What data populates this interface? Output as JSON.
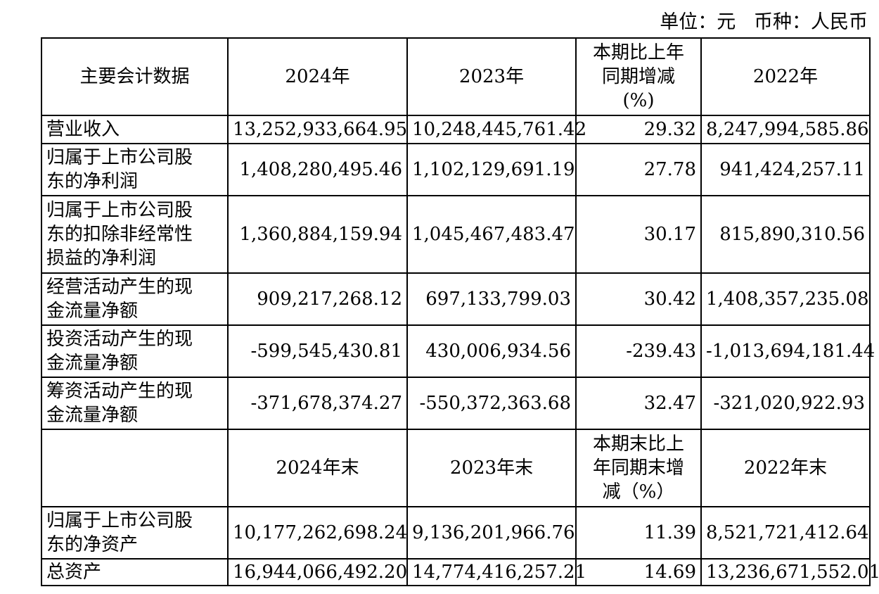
{
  "unit_line": "单位：元   币种：人民币",
  "header1": {
    "label": "主要会计数据",
    "col1": "2024年",
    "col2": "2023年",
    "col3_lines": [
      "本期比上年",
      "同期增减",
      "(%)"
    ],
    "col4": "2022年"
  },
  "rows1": [
    {
      "label_lines": [
        "营业收入"
      ],
      "v2024": "13,252,933,664.95",
      "v2023": "10,248,445,761.42",
      "pct": "29.32",
      "v2022": "8,247,994,585.86"
    },
    {
      "label_lines": [
        "归属于上市公司股",
        "东的净利润"
      ],
      "v2024": "1,408,280,495.46",
      "v2023": "1,102,129,691.19",
      "pct": "27.78",
      "v2022": "941,424,257.11"
    },
    {
      "label_lines": [
        "归属于上市公司股",
        "东的扣除非经常性",
        "损益的净利润"
      ],
      "v2024": "1,360,884,159.94",
      "v2023": "1,045,467,483.47",
      "pct": "30.17",
      "v2022": "815,890,310.56"
    },
    {
      "label_lines": [
        "经营活动产生的现",
        "金流量净额"
      ],
      "v2024": "909,217,268.12",
      "v2023": "697,133,799.03",
      "pct": "30.42",
      "v2022": "1,408,357,235.08"
    },
    {
      "label_lines": [
        "投资活动产生的现",
        "金流量净额"
      ],
      "v2024": "-599,545,430.81",
      "v2023": "430,006,934.56",
      "pct": "-239.43",
      "v2022": "-1,013,694,181.44"
    },
    {
      "label_lines": [
        "筹资活动产生的现",
        "金流量净额"
      ],
      "v2024": "-371,678,374.27",
      "v2023": "-550,372,363.68",
      "pct": "32.47",
      "v2022": "-321,020,922.93"
    }
  ],
  "header2": {
    "label": "",
    "col1": "2024年末",
    "col2": "2023年末",
    "col3_lines": [
      "本期末比上",
      "年同期末增",
      "减（%）"
    ],
    "col4": "2022年末"
  },
  "rows2": [
    {
      "label_lines": [
        "归属于上市公司股",
        "东的净资产"
      ],
      "v2024": "10,177,262,698.24",
      "v2023": "9,136,201,966.76",
      "pct": "11.39",
      "v2022": "8,521,721,412.64"
    },
    {
      "label_lines": [
        "总资产"
      ],
      "v2024": "16,944,066,492.20",
      "v2023": "14,774,416,257.21",
      "pct": "14.69",
      "v2022": "13,236,671,552.01"
    }
  ]
}
